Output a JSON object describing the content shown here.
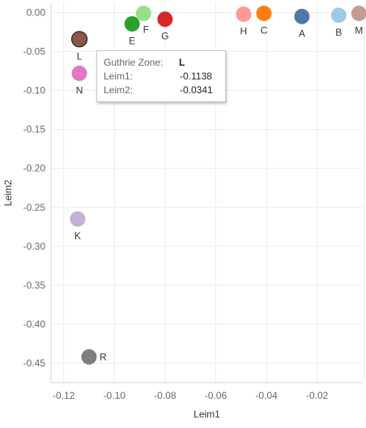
{
  "chart_data": {
    "type": "scatter",
    "xlabel": "Leim1",
    "ylabel": "Leim2",
    "xlim": [
      -0.125,
      -0.002
    ],
    "ylim": [
      -0.475,
      0.012
    ],
    "x_ticks": [
      {
        "value": -0.12,
        "label": "-0.12"
      },
      {
        "value": -0.1,
        "label": "-0.10"
      },
      {
        "value": -0.08,
        "label": "-0.08"
      },
      {
        "value": -0.06,
        "label": "-0.06"
      },
      {
        "value": -0.04,
        "label": "-0.04"
      },
      {
        "value": -0.02,
        "label": "-0.02"
      }
    ],
    "y_ticks": [
      {
        "value": 0.0,
        "label": "0.00"
      },
      {
        "value": -0.05,
        "label": "-0.05"
      },
      {
        "value": -0.1,
        "label": "-0.10"
      },
      {
        "value": -0.15,
        "label": "-0.15"
      },
      {
        "value": -0.2,
        "label": "-0.20"
      },
      {
        "value": -0.25,
        "label": "-0.25"
      },
      {
        "value": -0.3,
        "label": "-0.30"
      },
      {
        "value": -0.35,
        "label": "-0.35"
      },
      {
        "value": -0.4,
        "label": "-0.40"
      },
      {
        "value": -0.45,
        "label": "-0.45"
      }
    ],
    "grid": true,
    "points": [
      {
        "label": "L",
        "x": -0.1138,
        "y": -0.0341,
        "color": "#8c564b",
        "label_pos": "below",
        "selected": true
      },
      {
        "label": "N",
        "x": -0.1138,
        "y": -0.078,
        "color": "#e377c2",
        "label_pos": "below"
      },
      {
        "label": "E",
        "x": -0.093,
        "y": -0.0145,
        "color": "#2ca02c",
        "label_pos": "below"
      },
      {
        "label": "F",
        "x": -0.0885,
        "y": -0.001,
        "color": "#98df8a",
        "label_pos": "below-right"
      },
      {
        "label": "G",
        "x": -0.08,
        "y": -0.0085,
        "color": "#d62728",
        "label_pos": "below"
      },
      {
        "label": "H",
        "x": -0.049,
        "y": -0.002,
        "color": "#ff9896",
        "label_pos": "below"
      },
      {
        "label": "C",
        "x": -0.041,
        "y": -0.001,
        "color": "#ff7f0e",
        "label_pos": "below"
      },
      {
        "label": "A",
        "x": -0.026,
        "y": -0.005,
        "color": "#4e79a7",
        "label_pos": "below"
      },
      {
        "label": "B",
        "x": -0.0115,
        "y": -0.0035,
        "color": "#9ecae9",
        "label_pos": "below"
      },
      {
        "label": "M",
        "x": -0.0035,
        "y": -0.001,
        "color": "#c49c94",
        "label_pos": "below"
      },
      {
        "label": "K",
        "x": -0.1145,
        "y": -0.265,
        "color": "#c5b0d5",
        "label_pos": "below"
      },
      {
        "label": "R",
        "x": -0.11,
        "y": -0.442,
        "color": "#7f7f7f",
        "label_pos": "right"
      }
    ]
  },
  "tooltip": {
    "zone_label": "Guthrie Zone:",
    "zone_value": "L",
    "leim1_label": "Leim1:",
    "leim1_value": "-0.1138",
    "leim2_label": "Leim2:",
    "leim2_value": "-0.0341"
  }
}
